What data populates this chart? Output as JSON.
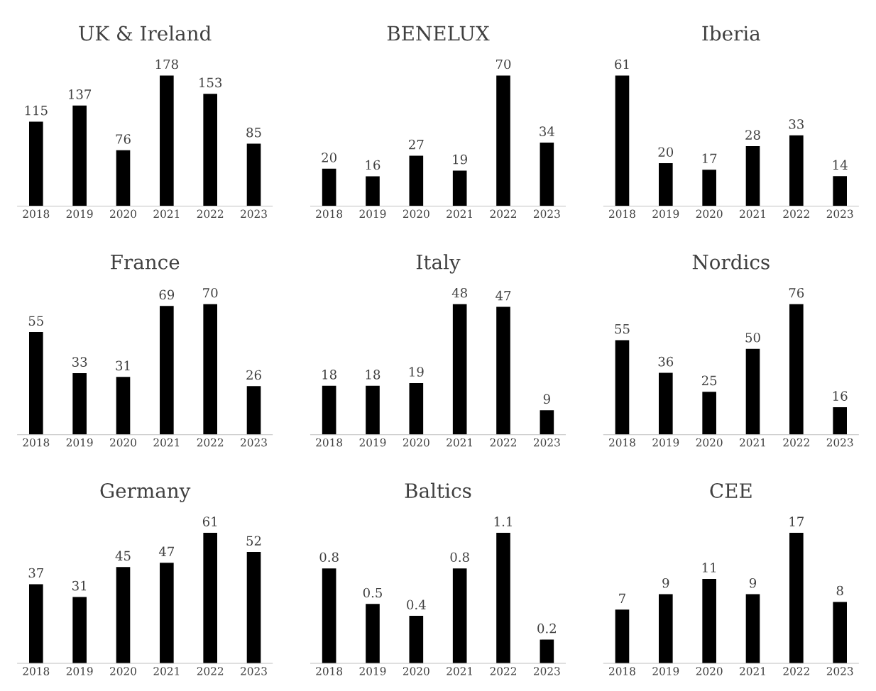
{
  "chart_data": [
    {
      "type": "bar",
      "title": "UK & Ireland",
      "categories": [
        "2018",
        "2019",
        "2020",
        "2021",
        "2022",
        "2023"
      ],
      "values": [
        115,
        137,
        76,
        178,
        153,
        85
      ],
      "color": "#000000",
      "data_labels": true,
      "grid": false,
      "legend": false,
      "tick_labels": "x"
    },
    {
      "type": "bar",
      "title": "BENELUX",
      "categories": [
        "2018",
        "2019",
        "2020",
        "2021",
        "2022",
        "2023"
      ],
      "values": [
        20,
        16,
        27,
        19,
        70,
        34
      ],
      "color": "#000000",
      "data_labels": true,
      "grid": false,
      "legend": false,
      "tick_labels": "x"
    },
    {
      "type": "bar",
      "title": "Iberia",
      "categories": [
        "2018",
        "2019",
        "2020",
        "2021",
        "2022",
        "2023"
      ],
      "values": [
        61,
        20,
        17,
        28,
        33,
        14
      ],
      "color": "#000000",
      "data_labels": true,
      "grid": false,
      "legend": false,
      "tick_labels": "x"
    },
    {
      "type": "bar",
      "title": "France",
      "categories": [
        "2018",
        "2019",
        "2020",
        "2021",
        "2022",
        "2023"
      ],
      "values": [
        55,
        33,
        31,
        69,
        70,
        26
      ],
      "color": "#000000",
      "data_labels": true,
      "grid": false,
      "legend": false,
      "tick_labels": "x"
    },
    {
      "type": "bar",
      "title": "Italy",
      "categories": [
        "2018",
        "2019",
        "2020",
        "2021",
        "2022",
        "2023"
      ],
      "values": [
        18,
        18,
        19,
        48,
        47,
        9
      ],
      "color": "#000000",
      "data_labels": true,
      "grid": false,
      "legend": false,
      "tick_labels": "x"
    },
    {
      "type": "bar",
      "title": "Nordics",
      "categories": [
        "2018",
        "2019",
        "2020",
        "2021",
        "2022",
        "2023"
      ],
      "values": [
        55,
        36,
        25,
        50,
        76,
        16
      ],
      "color": "#000000",
      "data_labels": true,
      "grid": false,
      "legend": false,
      "tick_labels": "x"
    },
    {
      "type": "bar",
      "title": "Germany",
      "categories": [
        "2018",
        "2019",
        "2020",
        "2021",
        "2022",
        "2023"
      ],
      "values": [
        37,
        31,
        45,
        47,
        61,
        52
      ],
      "color": "#000000",
      "data_labels": true,
      "grid": false,
      "legend": false,
      "tick_labels": "x"
    },
    {
      "type": "bar",
      "title": "Baltics",
      "categories": [
        "2018",
        "2019",
        "2020",
        "2021",
        "2022",
        "2023"
      ],
      "values": [
        0.8,
        0.5,
        0.4,
        0.8,
        1.1,
        0.2
      ],
      "color": "#000000",
      "data_labels": true,
      "grid": false,
      "legend": false,
      "tick_labels": "x"
    },
    {
      "type": "bar",
      "title": "CEE",
      "categories": [
        "2018",
        "2019",
        "2020",
        "2021",
        "2022",
        "2023"
      ],
      "values": [
        7,
        9,
        11,
        9,
        17,
        8
      ],
      "color": "#000000",
      "data_labels": true,
      "grid": false,
      "legend": false,
      "tick_labels": "x"
    }
  ]
}
